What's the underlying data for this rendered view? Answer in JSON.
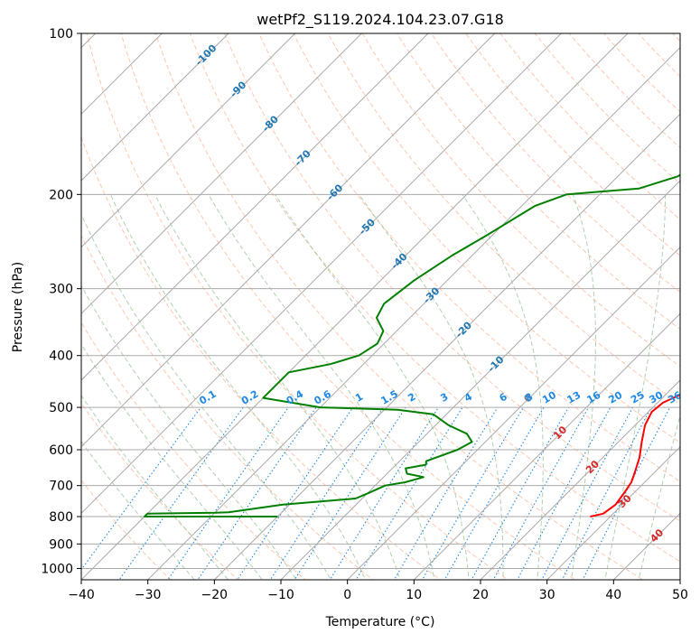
{
  "chart_data": {
    "type": "line",
    "diagram": "skew-T log-p",
    "title": "wetPf2_S119.2024.104.23.07.G18",
    "xlabel": "Temperature (°C)",
    "ylabel": "Pressure (hPa)",
    "xlim": [
      -40,
      50
    ],
    "ylim_hpa": [
      1050,
      100
    ],
    "y_scale": "log",
    "x_ticks": [
      -40,
      -30,
      -20,
      -10,
      0,
      10,
      20,
      30,
      40,
      50
    ],
    "x_tick_labels": [
      "−40",
      "−30",
      "−20",
      "−10",
      "0",
      "10",
      "20",
      "30",
      "40",
      "50"
    ],
    "y_ticks": [
      100,
      200,
      300,
      400,
      500,
      600,
      700,
      800,
      900,
      1000
    ],
    "y_tick_labels": [
      "100",
      "200",
      "300",
      "400",
      "500",
      "600",
      "700",
      "800",
      "900",
      "1000"
    ],
    "grid": true,
    "isotherm_labels": [
      "-100",
      "-90",
      "-80",
      "-70",
      "-60",
      "-50",
      "-40",
      "-30",
      "-20",
      "-10",
      "0",
      "10",
      "20",
      "30",
      "40"
    ],
    "mixing_ratio_labels": [
      "0.1",
      "0.2",
      "0.4",
      "0.6",
      "1",
      "1.5",
      "2",
      "3",
      "4",
      "6",
      "8",
      "10",
      "13",
      "16",
      "20",
      "25",
      "30",
      "36"
    ],
    "colors": {
      "temperature": "#ff0000",
      "dewpoint": "#008000",
      "isotherm_label": "#1f77b4",
      "warm_isotherm_label": "#d62728",
      "zero_label": "#7f7f7f",
      "mixing_ratio": "#1e88e5",
      "dry_adiabat": "#ffa07a",
      "moist_adiabat": "#8fbc8f",
      "grid": "#aaaaaa"
    },
    "series": [
      {
        "name": "Temperature",
        "points": [
          [
            27,
            800
          ],
          [
            28.5,
            790
          ],
          [
            29,
            760
          ],
          [
            28.5,
            720
          ],
          [
            28,
            690
          ],
          [
            27,
            660
          ],
          [
            25.5,
            620
          ],
          [
            23.5,
            580
          ],
          [
            21.5,
            540
          ],
          [
            20.5,
            510
          ],
          [
            20.8,
            490
          ],
          [
            22.5,
            470
          ],
          [
            23,
            450
          ],
          [
            21,
            420
          ],
          [
            18.5,
            400
          ],
          [
            16.5,
            380
          ],
          [
            15.5,
            360
          ],
          [
            15,
            340
          ],
          [
            13.5,
            310
          ],
          [
            11,
            280
          ],
          [
            9,
            260
          ],
          [
            7,
            240
          ],
          [
            5,
            220
          ],
          [
            3,
            200
          ],
          [
            1.5,
            180
          ],
          [
            1,
            170
          ],
          [
            0.2,
            150
          ],
          [
            -0.5,
            130
          ],
          [
            -0.5,
            120
          ],
          [
            0.5,
            114
          ],
          [
            1.5,
            110
          ],
          [
            2,
            105
          ],
          [
            2.5,
            100
          ]
        ]
      },
      {
        "name": "Dewpoint",
        "points": [
          [
            -20,
            800
          ],
          [
            -40,
            800
          ],
          [
            -40,
            790
          ],
          [
            -30,
            787
          ],
          [
            -28,
            785
          ],
          [
            -21,
            760
          ],
          [
            -11,
            740
          ],
          [
            -10,
            725
          ],
          [
            -8.5,
            700
          ],
          [
            -6,
            690
          ],
          [
            -4,
            675
          ],
          [
            -7,
            665
          ],
          [
            -8,
            650
          ],
          [
            -5.5,
            640
          ],
          [
            -6,
            630
          ],
          [
            -5,
            620
          ],
          [
            -3,
            600
          ],
          [
            -2,
            580
          ],
          [
            -4,
            560
          ],
          [
            -8,
            540
          ],
          [
            -12,
            515
          ],
          [
            -18,
            505
          ],
          [
            -30,
            500
          ],
          [
            -40,
            480
          ],
          [
            -40,
            430
          ],
          [
            -35,
            415
          ],
          [
            -32,
            400
          ],
          [
            -31,
            380
          ],
          [
            -32,
            360
          ],
          [
            -35,
            340
          ],
          [
            -36,
            320
          ],
          [
            -35,
            290
          ],
          [
            -33,
            260
          ],
          [
            -31,
            240
          ],
          [
            -28,
            210
          ],
          [
            -25,
            200
          ],
          [
            -15,
            195
          ],
          [
            -11,
            185
          ],
          [
            -9,
            170
          ],
          [
            -6.5,
            160
          ],
          [
            -5,
            140
          ],
          [
            -4.5,
            125
          ],
          [
            -5,
            115
          ],
          [
            -5,
            110
          ],
          [
            -3,
            105
          ],
          [
            -1,
            100
          ]
        ]
      }
    ]
  }
}
